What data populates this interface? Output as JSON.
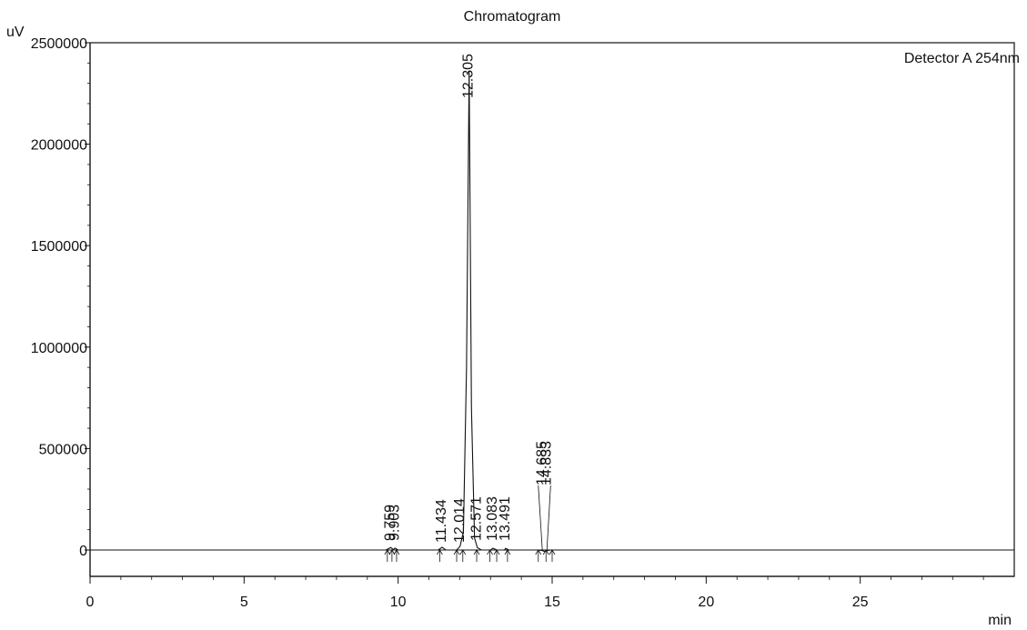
{
  "chart_data": {
    "type": "line",
    "title": "Chromatogram",
    "ylabel": "uV",
    "xlabel": "min",
    "legend": "Detector A 254nm",
    "xlim": [
      0,
      30
    ],
    "ylim": [
      -130000,
      2500000
    ],
    "x_ticks": [
      0,
      5,
      10,
      15,
      20,
      25
    ],
    "x_tick_labels": [
      "0",
      "5",
      "10",
      "15",
      "20",
      "25"
    ],
    "y_ticks": [
      0,
      500000,
      1000000,
      1500000,
      2000000,
      2500000
    ],
    "y_tick_labels": [
      "0",
      "500000",
      "1000000",
      "1500000",
      "2000000",
      "2500000"
    ],
    "series": [
      {
        "x": [
          0,
          9.6,
          9.76,
          9.85,
          9.9,
          10.0,
          11.3,
          11.43,
          11.55,
          11.9,
          12.01,
          12.12,
          12.22,
          12.305,
          12.38,
          12.48,
          12.57,
          12.7,
          13.0,
          13.08,
          13.2,
          13.45,
          13.49,
          13.6,
          14.55,
          14.685,
          14.76,
          14.833,
          14.95,
          30
        ],
        "y": [
          0,
          0,
          12000,
          2000,
          9000,
          0,
          0,
          14000,
          0,
          0,
          18000,
          90000,
          900000,
          2360000,
          700000,
          60000,
          12000,
          0,
          0,
          9000,
          0,
          0,
          8000,
          0,
          0,
          -3000,
          -8000,
          -3000,
          0,
          0
        ]
      }
    ],
    "peak_labels": [
      "9.759",
      "9.903",
      "11.434",
      "12.014",
      "12.305",
      "12.571",
      "13.083",
      "13.491",
      "14.685",
      "14.833"
    ]
  }
}
